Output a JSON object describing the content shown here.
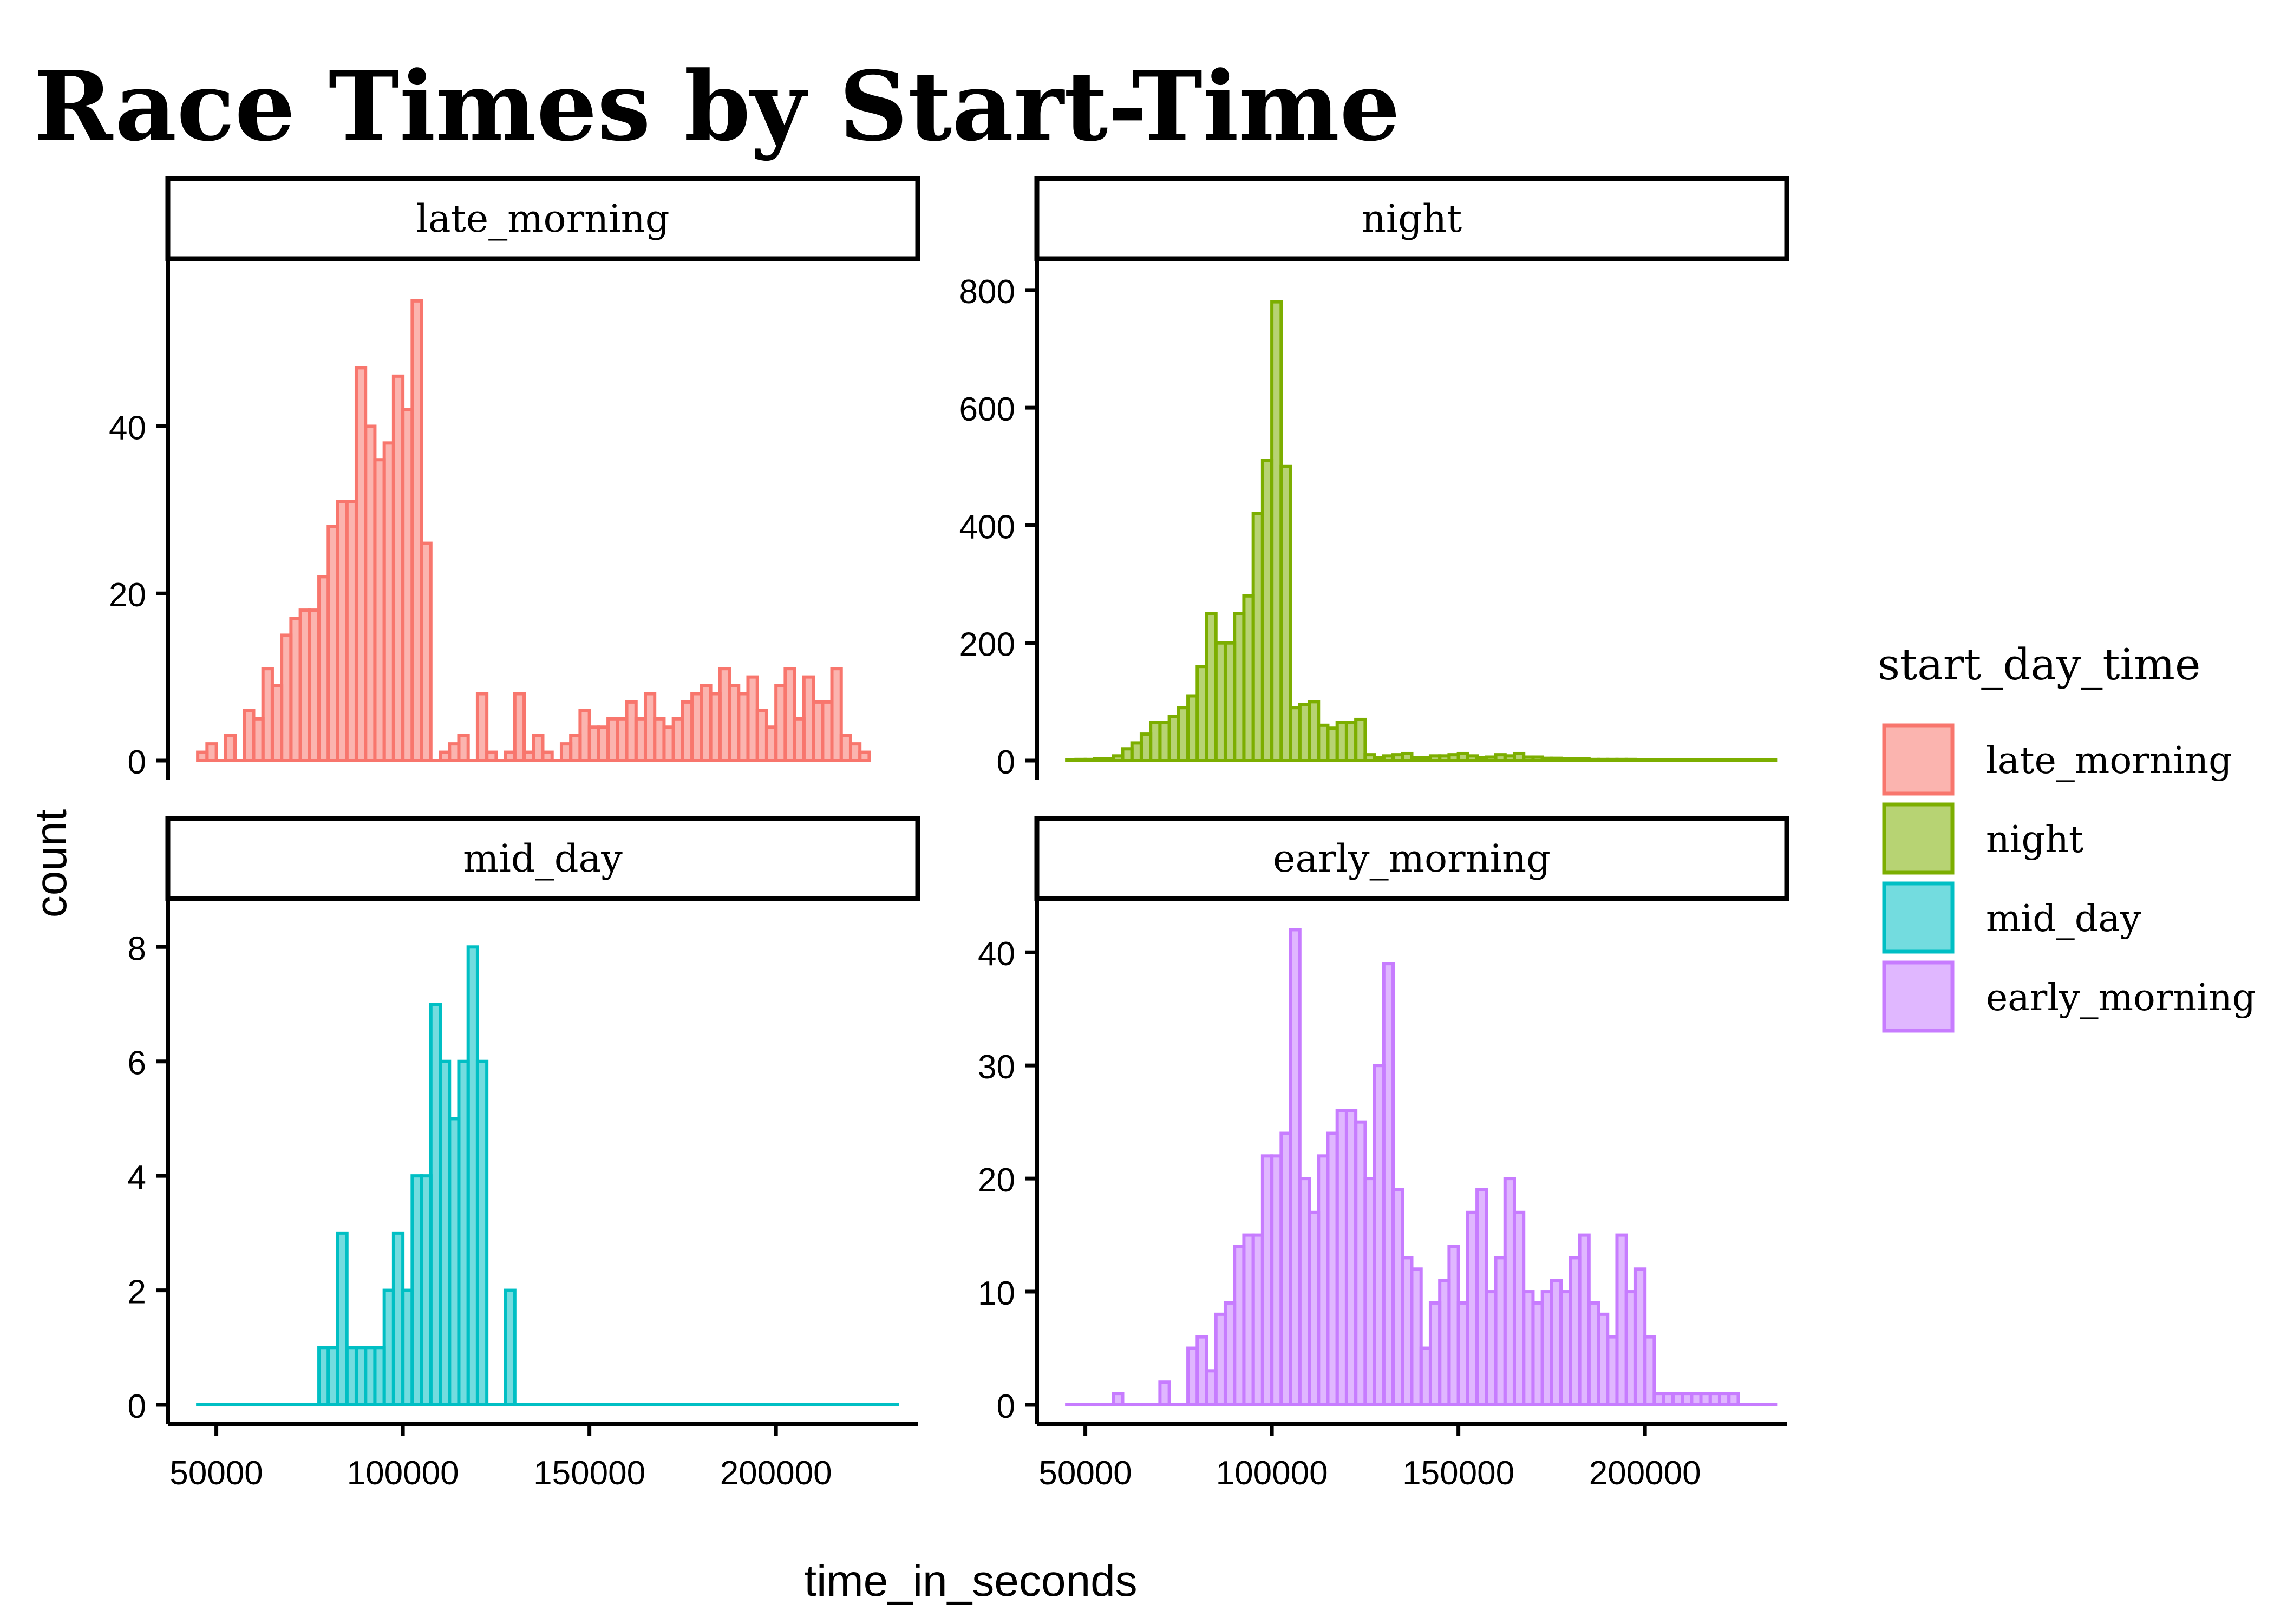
{
  "chart_data": {
    "type": "histogram",
    "title": "Race Times by Start-Time",
    "xlabel": "time_in_seconds",
    "ylabel": "count",
    "bin_width": 2500,
    "x_ticks": [
      50000,
      100000,
      150000,
      200000
    ],
    "legend": {
      "title": "start_day_time",
      "position": "right",
      "entries": [
        {
          "name": "late_morning",
          "color": "#F8766D"
        },
        {
          "name": "night",
          "color": "#7CAE00"
        },
        {
          "name": "mid_day",
          "color": "#00BFC4"
        },
        {
          "name": "early_morning",
          "color": "#C77CFF"
        }
      ]
    },
    "facets": [
      {
        "name": "late_morning",
        "color": "#F8766D",
        "ylim": [
          0,
          57
        ],
        "y_ticks": [
          0,
          20,
          40
        ],
        "x_start": 45000,
        "counts": [
          1,
          2,
          0,
          3,
          0,
          6,
          5,
          11,
          9,
          15,
          17,
          18,
          18,
          22,
          28,
          31,
          31,
          47,
          40,
          36,
          38,
          46,
          42,
          55,
          26,
          0,
          1,
          2,
          3,
          0,
          8,
          1,
          0,
          1,
          8,
          1,
          3,
          1,
          0,
          2,
          3,
          6,
          4,
          4,
          5,
          5,
          7,
          5,
          8,
          5,
          4,
          5,
          7,
          8,
          9,
          8,
          11,
          9,
          8,
          10,
          6,
          4,
          9,
          11,
          5,
          10,
          7,
          7,
          11,
          3,
          2,
          1
        ]
      },
      {
        "name": "night",
        "color": "#7CAE00",
        "ylim": [
          0,
          810
        ],
        "y_ticks": [
          0,
          200,
          400,
          600,
          800
        ],
        "x_start": 45000,
        "counts": [
          1,
          2,
          2,
          3,
          3,
          8,
          20,
          30,
          45,
          65,
          65,
          75,
          90,
          110,
          160,
          250,
          200,
          200,
          250,
          280,
          420,
          510,
          780,
          500,
          90,
          95,
          100,
          60,
          55,
          65,
          65,
          70,
          10,
          5,
          8,
          10,
          12,
          5,
          5,
          8,
          8,
          10,
          12,
          8,
          5,
          6,
          10,
          8,
          12,
          6,
          6,
          4,
          4,
          3,
          3,
          3,
          2,
          2,
          2,
          2,
          2,
          1,
          1,
          1,
          1,
          1,
          1,
          1,
          1,
          1,
          1,
          1,
          1,
          1,
          1,
          1
        ]
      },
      {
        "name": "mid_day",
        "color": "#00BFC4",
        "ylim": [
          0,
          8.4
        ],
        "y_ticks": [
          0,
          2,
          4,
          6,
          8
        ],
        "x_start": 45000,
        "counts": [
          0,
          0,
          0,
          0,
          0,
          0,
          0,
          0,
          0,
          0,
          0,
          0,
          0,
          1,
          1,
          3,
          1,
          1,
          1,
          1,
          2,
          3,
          2,
          4,
          4,
          7,
          6,
          5,
          6,
          8,
          6,
          0,
          0,
          2,
          0,
          0,
          0,
          0,
          0,
          0,
          0,
          0,
          0,
          0,
          0,
          0,
          0,
          0,
          0,
          0,
          0,
          0,
          0,
          0,
          0,
          0,
          0,
          0,
          0,
          0,
          0,
          0,
          0,
          0,
          0,
          0,
          0,
          0,
          0,
          0,
          0,
          0,
          0,
          0,
          0
        ]
      },
      {
        "name": "early_morning",
        "color": "#C77CFF",
        "ylim": [
          0,
          42.5
        ],
        "y_ticks": [
          0,
          10,
          20,
          30,
          40
        ],
        "x_start": 45000,
        "counts": [
          0,
          0,
          0,
          0,
          0,
          1,
          0,
          0,
          0,
          0,
          2,
          0,
          0,
          5,
          6,
          3,
          8,
          9,
          14,
          15,
          15,
          22,
          22,
          24,
          42,
          20,
          17,
          22,
          24,
          26,
          26,
          25,
          20,
          30,
          39,
          19,
          13,
          12,
          5,
          9,
          11,
          14,
          9,
          17,
          19,
          10,
          13,
          20,
          17,
          10,
          9,
          10,
          11,
          10,
          13,
          15,
          9,
          8,
          6,
          15,
          10,
          12,
          6,
          1,
          1,
          1,
          1,
          1,
          1,
          1,
          1,
          1,
          0,
          0,
          0,
          0
        ]
      }
    ]
  }
}
